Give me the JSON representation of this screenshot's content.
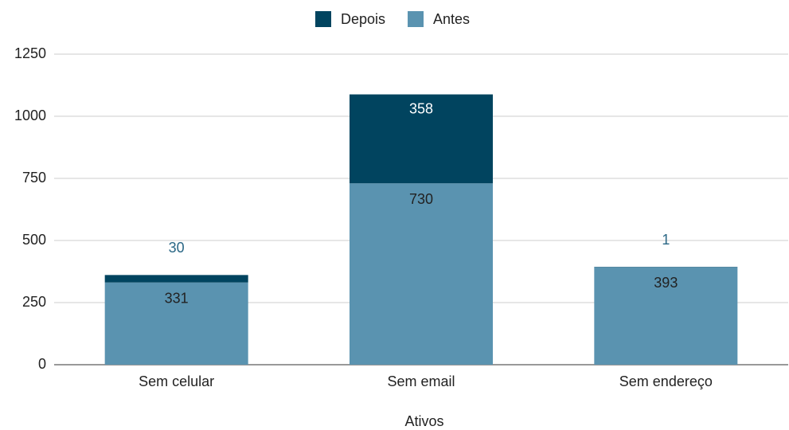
{
  "chart_data": {
    "type": "stacked_bar",
    "categories": [
      "Sem celular",
      "Sem email",
      "Sem endereço"
    ],
    "series": [
      {
        "name": "Antes",
        "color": "#5a93b0",
        "values": [
          331,
          730,
          393
        ]
      },
      {
        "name": "Depois",
        "color": "#01445f",
        "values": [
          30,
          358,
          1
        ]
      }
    ],
    "x_label": "Ativos",
    "ylim": [
      0,
      1250
    ],
    "yticks": [
      0,
      250,
      500,
      750,
      1000,
      1250
    ],
    "grid": true,
    "legend": "top"
  }
}
